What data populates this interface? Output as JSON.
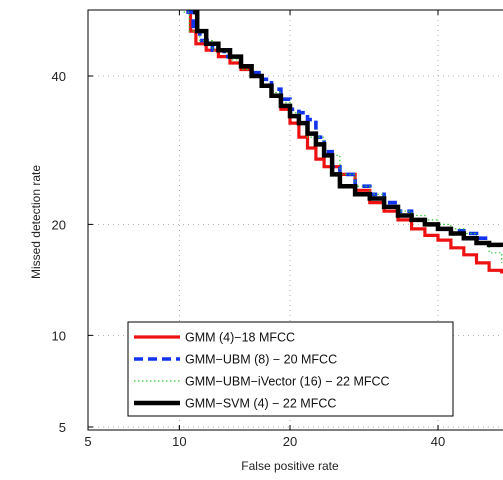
{
  "chart_data": {
    "type": "line",
    "xlabel": "False positive rate",
    "ylabel": "Missed detection rate",
    "x_scale": "probit",
    "y_scale": "probit",
    "x_ticks": [
      5,
      10,
      20,
      40
    ],
    "y_ticks": [
      5,
      10,
      20,
      40
    ],
    "x_tick_labels": [
      "5",
      "10",
      "20",
      "40"
    ],
    "y_tick_labels": [
      "5",
      "10",
      "20",
      "40"
    ],
    "xlim": [
      5,
      50
    ],
    "ylim": [
      5,
      50
    ],
    "grid": true,
    "legend_position": "bottom-left",
    "series": [
      {
        "name": "GMM (4)−18 MFCC",
        "color": "#ee1111",
        "style": "solid",
        "points": [
          [
            10.5,
            50
          ],
          [
            10.8,
            47
          ],
          [
            11.2,
            45
          ],
          [
            12,
            44
          ],
          [
            13,
            43
          ],
          [
            14,
            42
          ],
          [
            15,
            41
          ],
          [
            16,
            40
          ],
          [
            17,
            38.5
          ],
          [
            18,
            37
          ],
          [
            19,
            35
          ],
          [
            20,
            33
          ],
          [
            21,
            31
          ],
          [
            22,
            29.5
          ],
          [
            23,
            28
          ],
          [
            24,
            27
          ],
          [
            26,
            26
          ],
          [
            28,
            24
          ],
          [
            30,
            22.5
          ],
          [
            32,
            21.5
          ],
          [
            34,
            20.5
          ],
          [
            36,
            19.5
          ],
          [
            38,
            18.8
          ],
          [
            40,
            18.3
          ],
          [
            42,
            17.5
          ],
          [
            44,
            16.8
          ],
          [
            46,
            16
          ],
          [
            48,
            15.3
          ],
          [
            50,
            15
          ]
        ]
      },
      {
        "name": "GMM−UBM (8) − 20 MFCC",
        "color": "#1133ee",
        "style": "dashed",
        "points": [
          [
            10.5,
            50
          ],
          [
            11,
            47
          ],
          [
            11.5,
            45.5
          ],
          [
            12.5,
            44
          ],
          [
            13.5,
            43
          ],
          [
            15,
            41.5
          ],
          [
            16,
            40.5
          ],
          [
            17,
            39.5
          ],
          [
            18,
            38
          ],
          [
            19,
            36.5
          ],
          [
            20,
            35
          ],
          [
            21,
            34.5
          ],
          [
            22,
            33.5
          ],
          [
            23,
            31
          ],
          [
            24,
            29
          ],
          [
            25,
            27
          ],
          [
            26,
            26
          ],
          [
            28,
            24.5
          ],
          [
            30,
            23.5
          ],
          [
            32,
            22.5
          ],
          [
            34,
            21.5
          ],
          [
            36,
            20.5
          ],
          [
            38,
            20
          ],
          [
            40,
            19.5
          ],
          [
            42,
            19.3
          ],
          [
            44,
            19
          ],
          [
            46,
            18.5
          ],
          [
            48,
            17.8
          ],
          [
            50,
            17.6
          ]
        ]
      },
      {
        "name": "GMM−UBM−iVector (16) − 22 MFCC",
        "color": "#33cc33",
        "style": "dotted",
        "points": [
          [
            10.3,
            50
          ],
          [
            10.7,
            47
          ],
          [
            11.5,
            45.5
          ],
          [
            12.5,
            44
          ],
          [
            14,
            42.5
          ],
          [
            15,
            41
          ],
          [
            16,
            40
          ],
          [
            17,
            38.5
          ],
          [
            18,
            37.5
          ],
          [
            19,
            36
          ],
          [
            20,
            34.5
          ],
          [
            21,
            33
          ],
          [
            22,
            31
          ],
          [
            24,
            28.5
          ],
          [
            26,
            26
          ],
          [
            28,
            24.5
          ],
          [
            30,
            23.5
          ],
          [
            32,
            22
          ],
          [
            34,
            21.5
          ],
          [
            36,
            21
          ],
          [
            38,
            20.5
          ],
          [
            40,
            20
          ],
          [
            42,
            19.5
          ],
          [
            44,
            19
          ],
          [
            46,
            18
          ],
          [
            48,
            17
          ],
          [
            50,
            16
          ]
        ]
      },
      {
        "name": "GMM−SVM (4) − 22 MFCC",
        "color": "#000000",
        "style": "solid",
        "points": [
          [
            11,
            50
          ],
          [
            11.3,
            47
          ],
          [
            12,
            45
          ],
          [
            13,
            44
          ],
          [
            14,
            43
          ],
          [
            15,
            41.5
          ],
          [
            16,
            40
          ],
          [
            17,
            38.5
          ],
          [
            18,
            37
          ],
          [
            19,
            35.5
          ],
          [
            20,
            34
          ],
          [
            21,
            33
          ],
          [
            22,
            31.5
          ],
          [
            23,
            30
          ],
          [
            24,
            28.5
          ],
          [
            25,
            26
          ],
          [
            26,
            24.5
          ],
          [
            28,
            23.5
          ],
          [
            30,
            23
          ],
          [
            32,
            22
          ],
          [
            34,
            21
          ],
          [
            36,
            20.5
          ],
          [
            38,
            20
          ],
          [
            40,
            19.5
          ],
          [
            42,
            19
          ],
          [
            44,
            18.5
          ],
          [
            46,
            18
          ],
          [
            48,
            17.8
          ],
          [
            50,
            17.6
          ]
        ]
      }
    ]
  }
}
